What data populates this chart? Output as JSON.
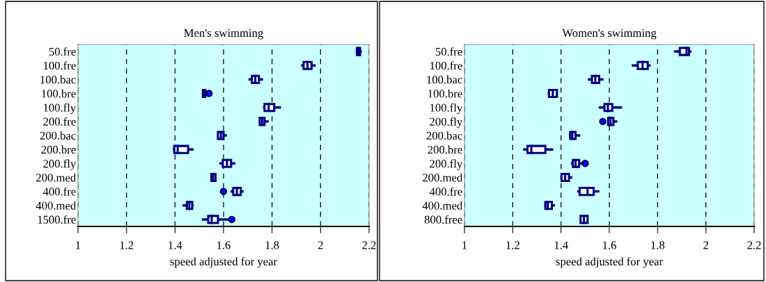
{
  "chart_data": [
    {
      "type": "box",
      "orientation": "horizontal",
      "title": "Men's swimming",
      "xlabel": "speed adjusted for year",
      "color": "#000080",
      "xlim": [
        1,
        2.2
      ],
      "xticks": [
        1,
        1.2,
        1.4,
        1.6,
        1.8,
        2,
        2.2
      ],
      "grid": "x",
      "line_style": "dashed",
      "categories": [
        "50.fre",
        "100.fre",
        "100.bac",
        "100.bre",
        "100.fly",
        "200.fre",
        "200.bac",
        "200.bre",
        "200.fly",
        "200.med",
        "400.fre",
        "400.med",
        "1500.fre"
      ],
      "boxes": [
        {
          "low": 2.145,
          "q1": 2.15,
          "median": 2.157,
          "q3": 2.163,
          "high": 2.17
        },
        {
          "low": 1.92,
          "q1": 1.93,
          "median": 1.946,
          "q3": 1.963,
          "high": 1.98
        },
        {
          "low": 1.703,
          "q1": 1.717,
          "median": 1.731,
          "q3": 1.746,
          "high": 1.763
        },
        {
          "low": 1.511,
          "q1": 1.515,
          "median": 1.52,
          "q3": 1.525,
          "high": 1.529,
          "outliers": [
            1.54
          ]
        },
        {
          "low": 1.763,
          "q1": 1.769,
          "median": 1.786,
          "q3": 1.809,
          "high": 1.837
        },
        {
          "low": 1.746,
          "q1": 1.749,
          "median": 1.759,
          "q3": 1.769,
          "high": 1.786
        },
        {
          "low": 1.574,
          "q1": 1.577,
          "median": 1.589,
          "q3": 1.6,
          "high": 1.614
        },
        {
          "low": 1.391,
          "q1": 1.397,
          "median": 1.411,
          "q3": 1.454,
          "high": 1.477
        },
        {
          "low": 1.583,
          "q1": 1.597,
          "median": 1.614,
          "q3": 1.631,
          "high": 1.649
        },
        {
          "low": 1.546,
          "q1": 1.55,
          "median": 1.557,
          "q3": 1.567,
          "high": 1.569
        },
        {
          "low": 1.629,
          "q1": 1.64,
          "median": 1.655,
          "q3": 1.671,
          "high": 1.683,
          "outliers": [
            1.6
          ]
        },
        {
          "low": 1.431,
          "q1": 1.449,
          "median": 1.459,
          "q3": 1.471,
          "high": 1.477
        },
        {
          "low": 1.511,
          "q1": 1.537,
          "median": 1.551,
          "q3": 1.577,
          "high": 1.62,
          "outliers": [
            1.634
          ]
        }
      ]
    },
    {
      "type": "box",
      "orientation": "horizontal",
      "title": "Women's swimming",
      "xlabel": "speed adjusted for year",
      "color": "#000080",
      "xlim": [
        1,
        2.2
      ],
      "xticks": [
        1,
        1.2,
        1.4,
        1.6,
        1.8,
        2,
        2.2
      ],
      "grid": "x",
      "line_style": "dashed",
      "categories": [
        "50.fre",
        "100.fre",
        "100.bac",
        "100.bre",
        "100.fly",
        "200.fly",
        "200.bac",
        "200.bre",
        "200.fly",
        "200.med",
        "400.fre",
        "400.med",
        "800.free"
      ],
      "boxes": [
        {
          "low": 1.868,
          "q1": 1.892,
          "median": 1.92,
          "q3": 1.93,
          "high": 1.94
        },
        {
          "low": 1.693,
          "q1": 1.718,
          "median": 1.738,
          "q3": 1.759,
          "high": 1.771
        },
        {
          "low": 1.511,
          "q1": 1.528,
          "median": 1.542,
          "q3": 1.558,
          "high": 1.576
        },
        {
          "low": 1.345,
          "q1": 1.35,
          "median": 1.366,
          "q3": 1.383,
          "high": 1.386
        },
        {
          "low": 1.556,
          "q1": 1.58,
          "median": 1.594,
          "q3": 1.612,
          "high": 1.653
        },
        {
          "low": 1.592,
          "q1": 1.595,
          "median": 1.605,
          "q3": 1.617,
          "high": 1.633,
          "outliers": [
            1.573
          ]
        },
        {
          "low": 1.433,
          "q1": 1.438,
          "median": 1.447,
          "q3": 1.46,
          "high": 1.48
        },
        {
          "low": 1.243,
          "q1": 1.261,
          "median": 1.277,
          "q3": 1.335,
          "high": 1.368
        },
        {
          "low": 1.441,
          "q1": 1.449,
          "median": 1.46,
          "q3": 1.475,
          "high": 1.487,
          "outliers": [
            1.5
          ]
        },
        {
          "low": 1.397,
          "q1": 1.402,
          "median": 1.417,
          "q3": 1.433,
          "high": 1.447
        },
        {
          "low": 1.467,
          "q1": 1.477,
          "median": 1.51,
          "q3": 1.535,
          "high": 1.559
        },
        {
          "low": 1.33,
          "q1": 1.335,
          "median": 1.345,
          "q3": 1.362,
          "high": 1.375
        },
        {
          "low": 1.477,
          "q1": 1.481,
          "median": 1.495,
          "q3": 1.51,
          "high": 1.513
        }
      ]
    }
  ]
}
